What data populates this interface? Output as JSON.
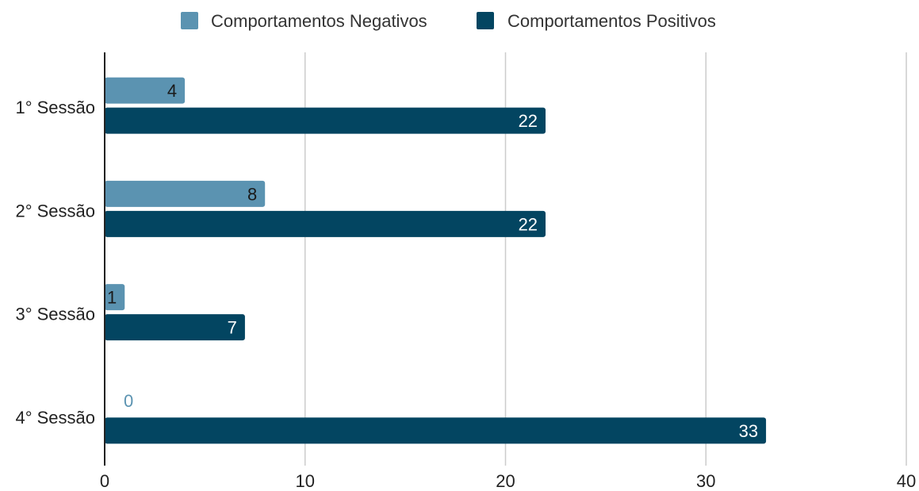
{
  "chart_data": {
    "type": "bar",
    "orientation": "horizontal",
    "title": "",
    "xlabel": "",
    "ylabel": "",
    "categories": [
      "1° Sessão",
      "2° Sessão",
      "3° Sessão",
      "4° Sessão"
    ],
    "series": [
      {
        "name": "Comportamentos Negativos",
        "values": [
          4,
          8,
          1,
          0
        ],
        "color": "#5b93b1",
        "label_color": "#1a1a1a",
        "zero_label_color": "#5b93b1"
      },
      {
        "name": "Comportamentos Positivos",
        "values": [
          22,
          22,
          7,
          33
        ],
        "color": "#034561",
        "label_color": "#ffffff"
      }
    ],
    "xlim": [
      0,
      40
    ],
    "xticks": [
      "0",
      "10",
      "20",
      "30",
      "40"
    ],
    "grid": true,
    "grid_color": "#cccccc",
    "legend_position": "top-center",
    "data_labels": true
  }
}
